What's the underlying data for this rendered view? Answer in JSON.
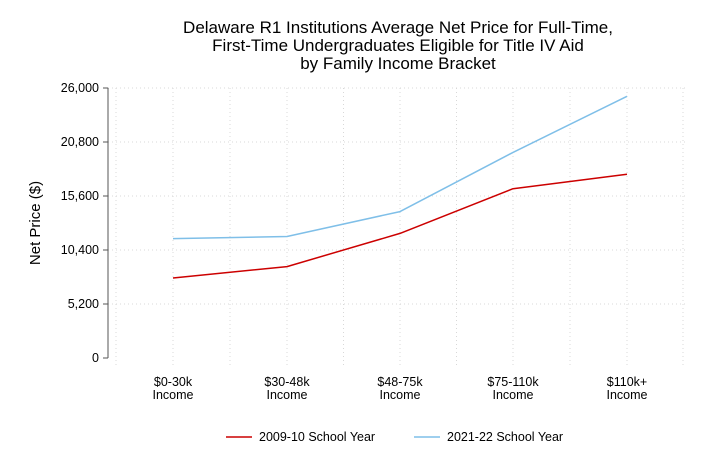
{
  "chart_data": {
    "type": "line",
    "title_lines": [
      "Delaware R1 Institutions Average Net Price for Full-Time,",
      "First-Time Undergraduates Eligible for Title IV Aid",
      "by Family Income Bracket"
    ],
    "ylabel": "Net Price ($)",
    "xlabel": "",
    "categories": [
      [
        "$0-30k",
        "Income"
      ],
      [
        "$30-48k",
        "Income"
      ],
      [
        "$48-75k",
        "Income"
      ],
      [
        "$75-110k",
        "Income"
      ],
      [
        "$110k+",
        "Income"
      ]
    ],
    "ylim": [
      0,
      26000
    ],
    "yticks": [
      0,
      5200,
      10400,
      15600,
      20800,
      26000
    ],
    "ytick_labels": [
      "0",
      "5,200",
      "10,400",
      "15,600",
      "20,800",
      "26,000"
    ],
    "grid": true,
    "legend_position": "bottom",
    "series": [
      {
        "name": "2009-10 School Year",
        "color": "#cc0000",
        "values": [
          7700,
          8800,
          12000,
          16300,
          17700
        ]
      },
      {
        "name": "2021-22 School Year",
        "color": "#7fbfe8",
        "values": [
          11500,
          11700,
          14100,
          19800,
          25200
        ]
      }
    ]
  }
}
